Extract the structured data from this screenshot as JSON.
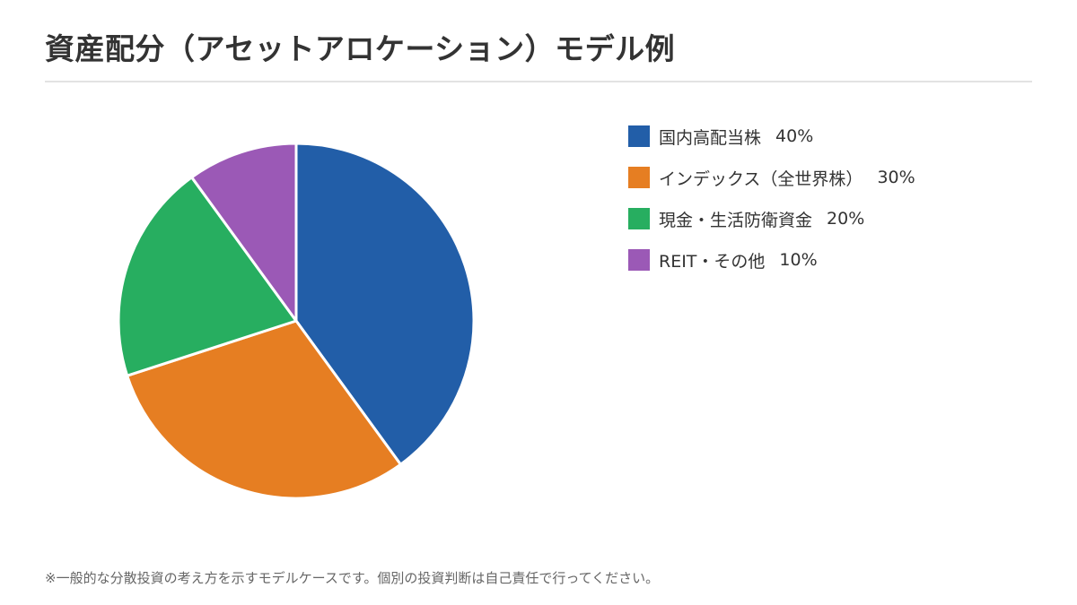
{
  "title": "資産配分（アセットアロケーション）モデル例",
  "note": "※一般的な分散投資の考え方を示すモデルケースです。個別の投資判断は自己責任で行ってください。",
  "chart_data": {
    "type": "pie",
    "title": "",
    "legend_position": "right",
    "categories": [
      "国内高配当株",
      "インデックス（全世界株）",
      "現金・生活防衛資金",
      "REIT・その他"
    ],
    "values": [
      40,
      30,
      20,
      10
    ],
    "labels": [
      "40%",
      "30%",
      "20%",
      "10%"
    ],
    "colors": [
      "#225EA8",
      "#E67E22",
      "#27AE60",
      "#9B59B6"
    ]
  }
}
